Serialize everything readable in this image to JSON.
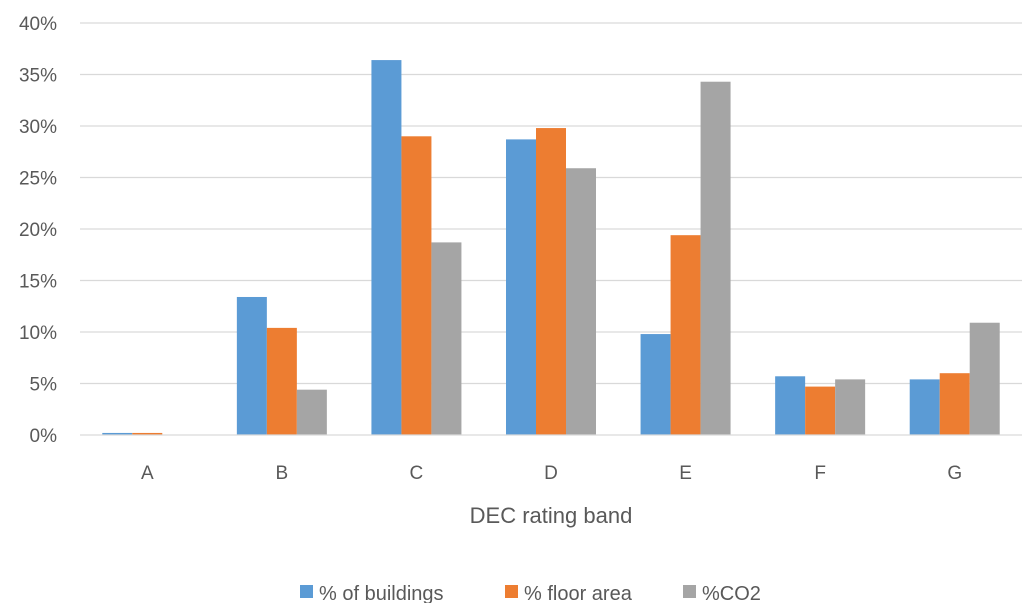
{
  "chart_data": {
    "type": "bar",
    "title": "",
    "xlabel": "DEC rating band",
    "ylabel": "",
    "ylim": [
      0,
      40
    ],
    "y_ticks": [
      "0%",
      "5%",
      "10%",
      "15%",
      "20%",
      "25%",
      "30%",
      "35%",
      "40%"
    ],
    "y_unit": "%",
    "grid": true,
    "legend_position": "bottom",
    "categories": [
      "A",
      "B",
      "C",
      "D",
      "E",
      "F",
      "G"
    ],
    "series": [
      {
        "name": "% of buildings",
        "color": "#5B9BD5",
        "values": [
          0.2,
          13.4,
          36.4,
          28.7,
          9.8,
          5.7,
          5.4
        ]
      },
      {
        "name": "% floor area",
        "color": "#ED7D31",
        "values": [
          0.2,
          10.4,
          29.0,
          29.8,
          19.4,
          4.7,
          6.0
        ]
      },
      {
        "name": "%CO2",
        "color": "#A5A5A5",
        "values": [
          0.0,
          4.4,
          18.7,
          25.9,
          34.3,
          5.4,
          10.9
        ]
      }
    ]
  }
}
